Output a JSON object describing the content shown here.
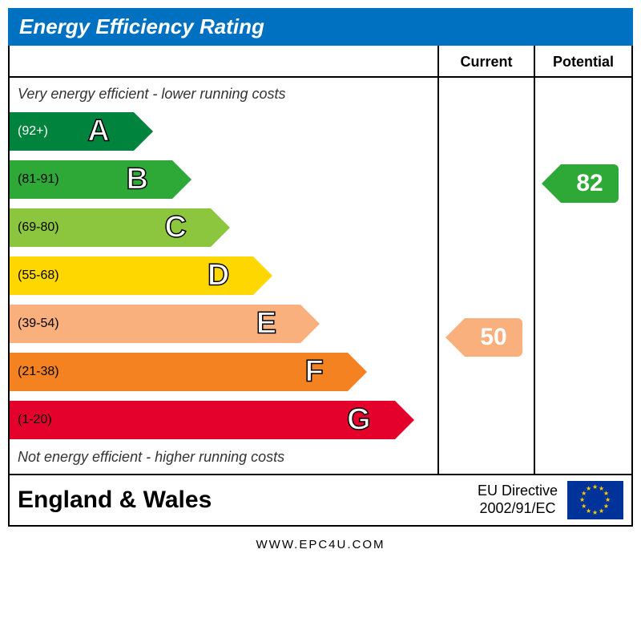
{
  "title": "Energy Efficiency Rating",
  "title_bar_color": "#0070c0",
  "columns": {
    "current": "Current",
    "potential": "Potential"
  },
  "caption_top": "Very energy efficient - lower running costs",
  "caption_bottom": "Not energy efficient - higher running costs",
  "band_height": 56,
  "bands": [
    {
      "letter": "A",
      "range": "(92+)",
      "color": "#00843d",
      "width_pct": 29,
      "range_text_color": "#ffffff"
    },
    {
      "letter": "B",
      "range": "(81-91)",
      "color": "#2ea836",
      "width_pct": 38,
      "range_text_color": "#000000"
    },
    {
      "letter": "C",
      "range": "(69-80)",
      "color": "#8cc63f",
      "width_pct": 47,
      "range_text_color": "#000000"
    },
    {
      "letter": "D",
      "range": "(55-68)",
      "color": "#ffd700",
      "width_pct": 57,
      "range_text_color": "#000000"
    },
    {
      "letter": "E",
      "range": "(39-54)",
      "color": "#f9b07d",
      "width_pct": 68,
      "range_text_color": "#000000"
    },
    {
      "letter": "F",
      "range": "(21-38)",
      "color": "#f58220",
      "width_pct": 79,
      "range_text_color": "#000000"
    },
    {
      "letter": "G",
      "range": "(1-20)",
      "color": "#e4022d",
      "width_pct": 90,
      "range_text_color": "#000000"
    }
  ],
  "ratings": {
    "current": {
      "value": 50,
      "band_index": 4,
      "color": "#f9b07d"
    },
    "potential": {
      "value": 82,
      "band_index": 1,
      "color": "#2ea836"
    }
  },
  "footer": {
    "region": "England & Wales",
    "directive_line1": "EU Directive",
    "directive_line2": "2002/91/EC",
    "eu_flag_bg": "#003399",
    "eu_star_color": "#ffcc00"
  },
  "source": "WWW.EPC4U.COM"
}
